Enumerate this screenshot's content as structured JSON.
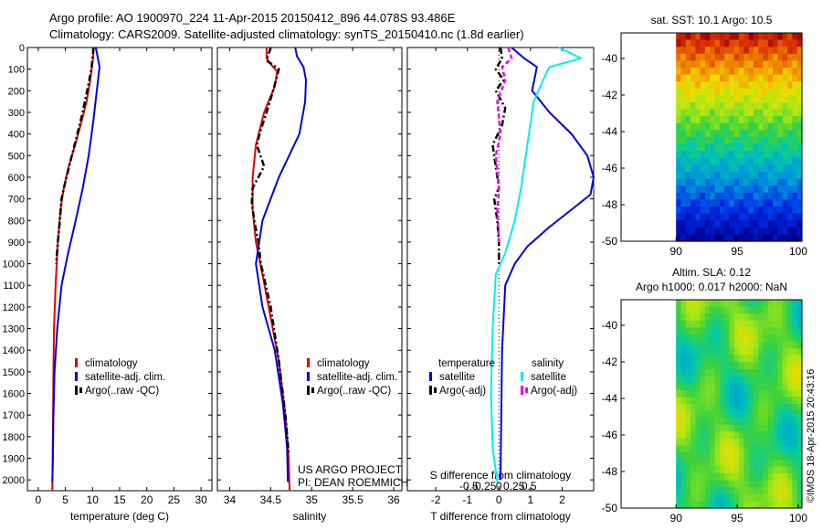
{
  "header": {
    "line1": "Argo profile: AO 1900970_224 11-Apr-2015 20150412_896 44.078S 93.486E",
    "line2": "Climatology: CARS2009. Satellite-adjusted climatology: synTS_20150410.nc (1.8d earlier)"
  },
  "colors": {
    "climatology": "#e00000",
    "satellite": "#0000dd",
    "argo": "#000000",
    "sat_salinity": "#00eeee",
    "argo_salinity": "#ee00ee"
  },
  "chart_data": [
    {
      "type": "line",
      "xlabel": "temperature (deg C)",
      "xticks": [
        "0",
        "5",
        "10",
        "15",
        "20",
        "25",
        "30"
      ],
      "xlim": [
        -2,
        32
      ],
      "ylim": [
        0,
        2050
      ],
      "yticks": [
        "0",
        "100",
        "200",
        "300",
        "400",
        "500",
        "600",
        "700",
        "800",
        "900",
        "1000",
        "1100",
        "1200",
        "1300",
        "1400",
        "1500",
        "1600",
        "1700",
        "1800",
        "1900",
        "2000"
      ],
      "legend": [
        "climatology",
        "satellite-adj. clim.",
        "Argo(..raw -QC)"
      ],
      "series": [
        {
          "name": "climatology",
          "color": "#e00000",
          "style": "solid",
          "points": [
            [
              10.2,
              0
            ],
            [
              10.1,
              50
            ],
            [
              9.6,
              150
            ],
            [
              8.9,
              250
            ],
            [
              7.9,
              350
            ],
            [
              6.8,
              450
            ],
            [
              5.6,
              550
            ],
            [
              4.7,
              650
            ],
            [
              4.1,
              750
            ],
            [
              3.6,
              900
            ],
            [
              3.2,
              1100
            ],
            [
              2.9,
              1300
            ],
            [
              2.8,
              1500
            ],
            [
              2.7,
              1800
            ],
            [
              2.6,
              2050
            ]
          ]
        },
        {
          "name": "satellite-adj. clim.",
          "color": "#0000dd",
          "style": "solid",
          "points": [
            [
              10.6,
              0
            ],
            [
              11.3,
              90
            ],
            [
              10.8,
              200
            ],
            [
              10.1,
              350
            ],
            [
              9.3,
              500
            ],
            [
              8.2,
              650
            ],
            [
              6.9,
              800
            ],
            [
              5.5,
              950
            ],
            [
              4.3,
              1100
            ],
            [
              3.5,
              1300
            ],
            [
              3.0,
              1500
            ],
            [
              2.8,
              1700
            ],
            [
              2.7,
              1900
            ],
            [
              2.6,
              2010
            ]
          ]
        },
        {
          "name": "Argo(..raw -QC)",
          "color": "#000000",
          "style": "dashdot",
          "points": [
            [
              10.2,
              0
            ],
            [
              9.8,
              100
            ],
            [
              9.0,
              200
            ],
            [
              8.0,
              320
            ],
            [
              7.0,
              420
            ],
            [
              6.0,
              520
            ],
            [
              5.0,
              620
            ],
            [
              4.3,
              700
            ],
            [
              4.0,
              800
            ],
            [
              3.6,
              900
            ],
            [
              3.3,
              1000
            ]
          ]
        }
      ]
    },
    {
      "type": "line",
      "xlabel": "salinity",
      "xticks": [
        "34",
        "34.5",
        "35",
        "35.5",
        "36"
      ],
      "xlim": [
        33.85,
        36.1
      ],
      "ylim": [
        0,
        2050
      ],
      "legend": [
        "climatology",
        "satellite-adj. clim.",
        "Argo(..raw -QC)"
      ],
      "series": [
        {
          "name": "climatology",
          "color": "#e00000",
          "style": "solid",
          "points": [
            [
              34.45,
              0
            ],
            [
              34.45,
              50
            ],
            [
              34.53,
              90
            ],
            [
              34.58,
              110
            ],
            [
              34.55,
              180
            ],
            [
              34.42,
              300
            ],
            [
              34.32,
              450
            ],
            [
              34.28,
              600
            ],
            [
              34.28,
              750
            ],
            [
              34.32,
              900
            ],
            [
              34.4,
              1050
            ],
            [
              34.5,
              1250
            ],
            [
              34.6,
              1450
            ],
            [
              34.68,
              1700
            ],
            [
              34.72,
              1900
            ],
            [
              34.73,
              2050
            ]
          ]
        },
        {
          "name": "satellite-adj. clim.",
          "color": "#0000dd",
          "style": "solid",
          "points": [
            [
              34.8,
              0
            ],
            [
              34.82,
              40
            ],
            [
              34.9,
              90
            ],
            [
              34.93,
              150
            ],
            [
              34.92,
              250
            ],
            [
              34.85,
              400
            ],
            [
              34.6,
              600
            ],
            [
              34.4,
              800
            ],
            [
              34.32,
              1000
            ],
            [
              34.4,
              1200
            ],
            [
              34.55,
              1400
            ],
            [
              34.65,
              1650
            ],
            [
              34.7,
              1850
            ],
            [
              34.71,
              2010
            ]
          ]
        },
        {
          "name": "Argo(..raw -QC)",
          "color": "#000000",
          "style": "dashdot",
          "points": [
            [
              34.5,
              0
            ],
            [
              34.45,
              60
            ],
            [
              34.6,
              100
            ],
            [
              34.53,
              200
            ],
            [
              34.45,
              300
            ],
            [
              34.38,
              380
            ],
            [
              34.33,
              450
            ],
            [
              34.42,
              550
            ],
            [
              34.28,
              650
            ],
            [
              34.27,
              720
            ],
            [
              34.3,
              800
            ],
            [
              34.35,
              900
            ],
            [
              34.38,
              1000
            ],
            [
              34.5,
              1200
            ],
            [
              34.6,
              1450
            ],
            [
              34.68,
              1700
            ],
            [
              34.72,
              1880
            ]
          ]
        }
      ]
    },
    {
      "type": "line",
      "xlabel": "T difference from climatology",
      "toplabel": "S difference from climatology",
      "xticks": [
        "-2",
        "-1",
        "0",
        "1",
        "2"
      ],
      "sticks": [
        "-0.5",
        "-0.25",
        "0",
        "0.25",
        "0.5"
      ],
      "xlim": [
        -2.9,
        3.0
      ],
      "ylim": [
        0,
        2050
      ],
      "legend": {
        "temperature_heading": "temperature",
        "salinity_heading": "salinity",
        "items": [
          "satellite",
          "Argo(-adj)",
          "satellite",
          "Argo(-adj)"
        ]
      },
      "series": [
        {
          "name": "satellite",
          "color": "#0000dd",
          "style": "solid",
          "points": [
            [
              0.4,
              0
            ],
            [
              0.8,
              50
            ],
            [
              1.2,
              90
            ],
            [
              1.05,
              200
            ],
            [
              1.6,
              300
            ],
            [
              2.3,
              400
            ],
            [
              2.8,
              500
            ],
            [
              3.0,
              600
            ],
            [
              2.9,
              680
            ],
            [
              2.3,
              750
            ],
            [
              1.6,
              830
            ],
            [
              0.9,
              920
            ],
            [
              0.5,
              1000
            ],
            [
              0.2,
              1100
            ],
            [
              0.1,
              1400
            ],
            [
              0.05,
              2000
            ]
          ]
        },
        {
          "name": "Argo(-adj)",
          "color": "#000000",
          "style": "dashdot",
          "points": [
            [
              0.05,
              0
            ],
            [
              0.1,
              50
            ],
            [
              -0.1,
              100
            ],
            [
              0.15,
              150
            ],
            [
              -0.1,
              200
            ],
            [
              0.2,
              280
            ],
            [
              0.1,
              360
            ],
            [
              -0.2,
              450
            ],
            [
              -0.1,
              550
            ],
            [
              0.0,
              650
            ],
            [
              -0.15,
              700
            ],
            [
              -0.05,
              800
            ],
            [
              0.0,
              900
            ],
            [
              0.0,
              1000
            ]
          ]
        },
        {
          "name": "satellite",
          "color": "#00eeee",
          "style": "solid",
          "points": [
            [
              1.9,
              0
            ],
            [
              2.6,
              50
            ],
            [
              1.6,
              90
            ],
            [
              1.4,
              150
            ],
            [
              1.1,
              250
            ],
            [
              0.9,
              450
            ],
            [
              0.7,
              650
            ],
            [
              0.5,
              800
            ],
            [
              0.2,
              950
            ],
            [
              -0.1,
              1050
            ],
            [
              -0.2,
              1300
            ],
            [
              -0.25,
              1600
            ],
            [
              -0.2,
              1850
            ],
            [
              -0.05,
              2010
            ]
          ]
        },
        {
          "name": "Argo(-adj)",
          "color": "#ee00ee",
          "style": "dashed",
          "points": [
            [
              0.3,
              0
            ],
            [
              0.4,
              50
            ],
            [
              0.1,
              90
            ],
            [
              0.2,
              150
            ],
            [
              -0.05,
              250
            ],
            [
              0.05,
              400
            ],
            [
              -0.1,
              500
            ],
            [
              0.0,
              650
            ],
            [
              -0.05,
              750
            ],
            [
              0.0,
              900
            ]
          ]
        }
      ]
    },
    {
      "type": "heatmap",
      "title": "sat. SST: 10.1  Argo: 10.5",
      "xticks": [
        "90",
        "95",
        "100"
      ],
      "yticks": [
        "-40",
        "-42",
        "-44",
        "-46",
        "-48",
        "-50"
      ],
      "xlim": [
        85.5,
        100.3
      ],
      "ylim": [
        -50,
        -38.6
      ]
    },
    {
      "type": "heatmap",
      "title": "Altim. SLA: 0.12",
      "subtitle": "Argo h1000: 0.017  h2000: NaN",
      "xticks": [
        "90",
        "95",
        "100"
      ],
      "yticks": [
        "-40",
        "-42",
        "-44",
        "-46",
        "-48",
        "-50"
      ],
      "xlim": [
        85.5,
        100.3
      ],
      "ylim": [
        -50,
        -38.6
      ]
    }
  ],
  "annotations": {
    "project_line1": "US ARGO PROJECT",
    "project_line2": "PI: DEAN ROEMMICH",
    "timestamp": "©IMOS 18-Apr-2015 20:43:16"
  }
}
